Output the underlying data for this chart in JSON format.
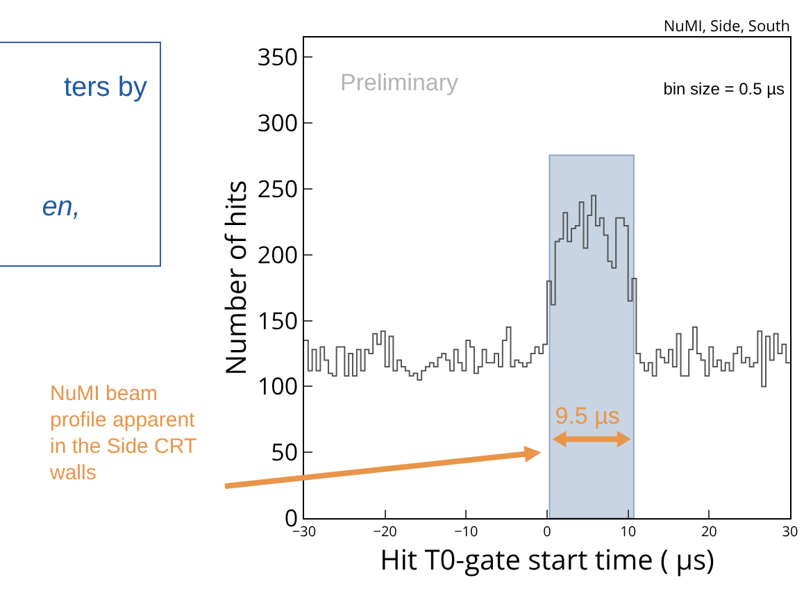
{
  "chart_data": {
    "type": "histogram",
    "title": "NuMI, Side, South",
    "xlabel": "Hit T0-gate start time ( µs)",
    "ylabel": "Number of hits",
    "bins": [
      -30,
      -29.5,
      -29,
      -28.5,
      -28,
      -27.5,
      -27,
      -26.5,
      -26,
      -25.5,
      -25,
      -24.5,
      -24,
      -23.5,
      -23,
      -22.5,
      -22,
      -21.5,
      -21,
      -20.5,
      -20,
      -19.5,
      -19,
      -18.5,
      -18,
      -17.5,
      -17,
      -16.5,
      -16,
      -15.5,
      -15,
      -14.5,
      -14,
      -13.5,
      -13,
      -12.5,
      -12,
      -11.5,
      -11,
      -10.5,
      -10,
      -9.5,
      -9,
      -8.5,
      -8,
      -7.5,
      -7,
      -6.5,
      -6,
      -5.5,
      -5,
      -4.5,
      -4,
      -3.5,
      -3,
      -2.5,
      -2,
      -1.5,
      -1,
      -0.5,
      0,
      0.5,
      1,
      1.5,
      2,
      2.5,
      3,
      3.5,
      4,
      4.5,
      5,
      5.5,
      6,
      6.5,
      7,
      7.5,
      8,
      8.5,
      9,
      9.5,
      10,
      10.5,
      11,
      11.5,
      12,
      12.5,
      13,
      13.5,
      14,
      14.5,
      15,
      15.5,
      16,
      16.5,
      17,
      17.5,
      18,
      18.5,
      19,
      19.5,
      20,
      20.5,
      21,
      21.5,
      22,
      22.5,
      23,
      23.5,
      24,
      24.5,
      25,
      25.5,
      26,
      26.5,
      27,
      27.5,
      28,
      28.5,
      29,
      29.5,
      30
    ],
    "values": [
      135,
      112,
      128,
      112,
      130,
      120,
      110,
      108,
      130,
      130,
      108,
      125,
      108,
      128,
      112,
      128,
      125,
      140,
      132,
      142,
      115,
      138,
      112,
      120,
      115,
      112,
      108,
      110,
      105,
      112,
      115,
      118,
      115,
      122,
      125,
      120,
      112,
      128,
      118,
      112,
      135,
      130,
      110,
      115,
      128,
      118,
      118,
      125,
      115,
      135,
      145,
      115,
      120,
      118,
      115,
      118,
      125,
      130,
      125,
      132,
      180,
      162,
      210,
      212,
      232,
      210,
      220,
      222,
      240,
      205,
      230,
      245,
      222,
      228,
      215,
      195,
      190,
      228,
      228,
      222,
      165,
      182,
      125,
      118,
      112,
      118,
      108,
      128,
      122,
      118,
      128,
      115,
      140,
      108,
      108,
      128,
      145,
      125,
      120,
      108,
      130,
      115,
      120,
      112,
      118,
      112,
      125,
      130,
      118,
      122,
      115,
      118,
      142,
      100,
      138,
      120,
      140,
      125,
      132,
      118
    ],
    "color": "#555555",
    "xlim": [
      -30,
      30
    ],
    "xticks": [
      {
        "value": -30,
        "label": "−30"
      },
      {
        "value": -20,
        "label": "−20"
      },
      {
        "value": -10,
        "label": "−10"
      },
      0,
      10,
      20,
      30
    ],
    "ylim": [
      0,
      365
    ],
    "yticks": [
      0,
      50,
      100,
      150,
      200,
      250,
      300,
      350
    ],
    "grid": false,
    "bands": [
      {
        "axis": "x",
        "from": 0.3,
        "to": 10.7,
        "color": "#c9d4e2"
      }
    ],
    "annotations": [
      "Preliminary",
      "bin size = 0.5  µs",
      "9.5 µs",
      "NuMI beam profile apparent in the Side CRT walls",
      "ters by",
      "en,"
    ]
  }
}
